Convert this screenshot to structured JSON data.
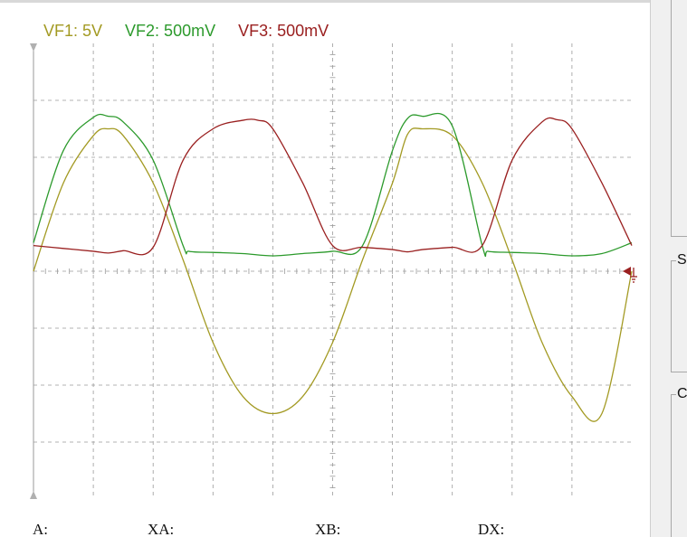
{
  "channels": [
    {
      "name": "VF1",
      "scale": "VF1: 5V",
      "color": "#a39a23"
    },
    {
      "name": "VF2",
      "scale": "VF2: 500mV",
      "color": "#2c9a2c"
    },
    {
      "name": "VF3",
      "scale": "VF3: 500mV",
      "color": "#9a2020"
    }
  ],
  "cursor_readouts": {
    "a_label": "A:",
    "xa_label": "XA:",
    "xb_label": "XB:",
    "dx_label": "DX:"
  },
  "right_panel": {
    "group1_caption": "",
    "group2_caption": "S",
    "group3_caption": "C"
  },
  "chart_data": {
    "type": "line",
    "grid": true,
    "x_divisions": 10,
    "y_divisions": 8,
    "x_range": [
      0,
      10
    ],
    "y_range": [
      -4,
      4
    ],
    "series": [
      {
        "channel": "VF1",
        "x": [
          0,
          0.5,
          1.0,
          1.25,
          1.5,
          2.0,
          2.5,
          3.0,
          3.5,
          4.0,
          4.5,
          5.0,
          5.5,
          6.0,
          6.25,
          6.5,
          7.0,
          7.5,
          8.0,
          8.5,
          9.0,
          9.5,
          10.0
        ],
        "y": [
          0,
          1.55,
          2.38,
          2.5,
          2.38,
          1.55,
          0.2,
          -1.25,
          -2.2,
          -2.5,
          -2.2,
          -1.25,
          0.2,
          1.55,
          2.4,
          2.5,
          2.38,
          1.55,
          0.2,
          -1.25,
          -2.2,
          -2.5,
          0
        ]
      },
      {
        "channel": "VF2",
        "x": [
          0,
          0.5,
          1.0,
          1.25,
          1.5,
          2.0,
          2.5,
          2.6,
          3.0,
          3.5,
          4.0,
          4.5,
          5.0,
          5.5,
          6.0,
          6.25,
          6.5,
          7.0,
          7.5,
          7.6,
          8.0,
          8.5,
          9.0,
          9.5,
          10.0
        ],
        "y": [
          0.5,
          2.12,
          2.7,
          2.72,
          2.62,
          1.95,
          0.45,
          0.35,
          0.33,
          0.31,
          0.27,
          0.31,
          0.35,
          0.45,
          2.12,
          2.68,
          2.72,
          2.55,
          0.45,
          0.35,
          0.33,
          0.31,
          0.27,
          0.31,
          0.5
        ]
      },
      {
        "channel": "VF3",
        "x": [
          0,
          0.5,
          1.0,
          1.25,
          1.5,
          2.0,
          2.5,
          3.0,
          3.5,
          3.75,
          4.0,
          4.5,
          5.0,
          5.5,
          6.0,
          6.25,
          6.5,
          7.0,
          7.5,
          8.0,
          8.5,
          8.75,
          9.0,
          9.5,
          10.0
        ],
        "y": [
          0.45,
          0.4,
          0.35,
          0.32,
          0.36,
          0.42,
          1.95,
          2.5,
          2.65,
          2.65,
          2.5,
          1.55,
          0.45,
          0.42,
          0.38,
          0.34,
          0.38,
          0.42,
          0.45,
          1.95,
          2.62,
          2.66,
          2.5,
          1.55,
          0.45
        ]
      }
    ]
  }
}
